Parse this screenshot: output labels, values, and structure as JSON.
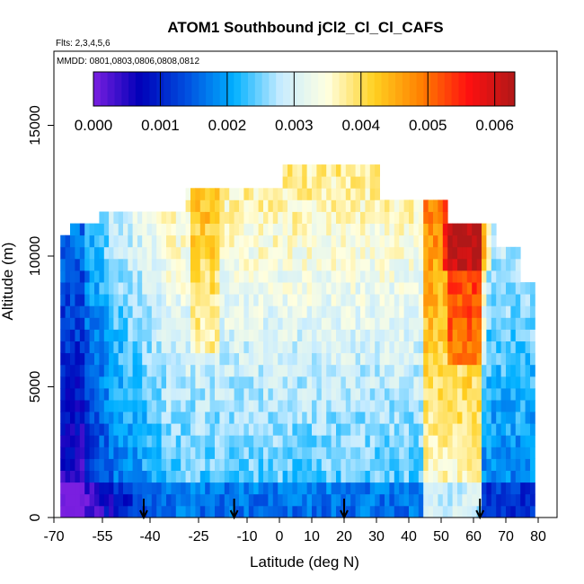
{
  "chart_data": {
    "type": "heatmap",
    "title": "ATOM1 Southbound jCl2_Cl_Cl_CAFS",
    "annotations": {
      "flights": "Flts: 2,3,4,5,6",
      "dates": "MMDD: 0801,0803,0806,0808,0812"
    },
    "xlabel": "Latitude (deg N)",
    "ylabel": "Altitude (m)",
    "xlim": [
      -70,
      80
    ],
    "ylim": [
      0,
      18000
    ],
    "xticks": [
      -70,
      -55,
      -40,
      -25,
      -10,
      0,
      10,
      20,
      30,
      40,
      50,
      60,
      70,
      80
    ],
    "x_tick_labels": [
      "-70",
      "-55",
      "-40",
      "-25",
      "-10",
      "0",
      "10",
      "20",
      "30",
      "40",
      "50",
      "60",
      "70",
      "80"
    ],
    "yticks": [
      0,
      5000,
      10000,
      15000
    ],
    "y_tick_labels": [
      "0",
      "5000",
      "10000",
      "15000"
    ],
    "colorbar": {
      "min": 0,
      "max": 0.0063,
      "ticks": [
        0,
        0.001,
        0.002,
        0.003,
        0.004,
        0.005,
        0.006
      ],
      "tick_labels": [
        "0.000",
        "0.001",
        "0.002",
        "0.003",
        "0.004",
        "0.005",
        "0.006"
      ],
      "colors": [
        "#7a1fe0",
        "#0000b8",
        "#0050e0",
        "#00b0ff",
        "#c8ecff",
        "#ffffe0",
        "#ffd020",
        "#ff8000",
        "#ff1010",
        "#b01818"
      ]
    },
    "profile_markers_latitude": [
      -42,
      -14,
      20,
      62
    ],
    "grid": false
  }
}
